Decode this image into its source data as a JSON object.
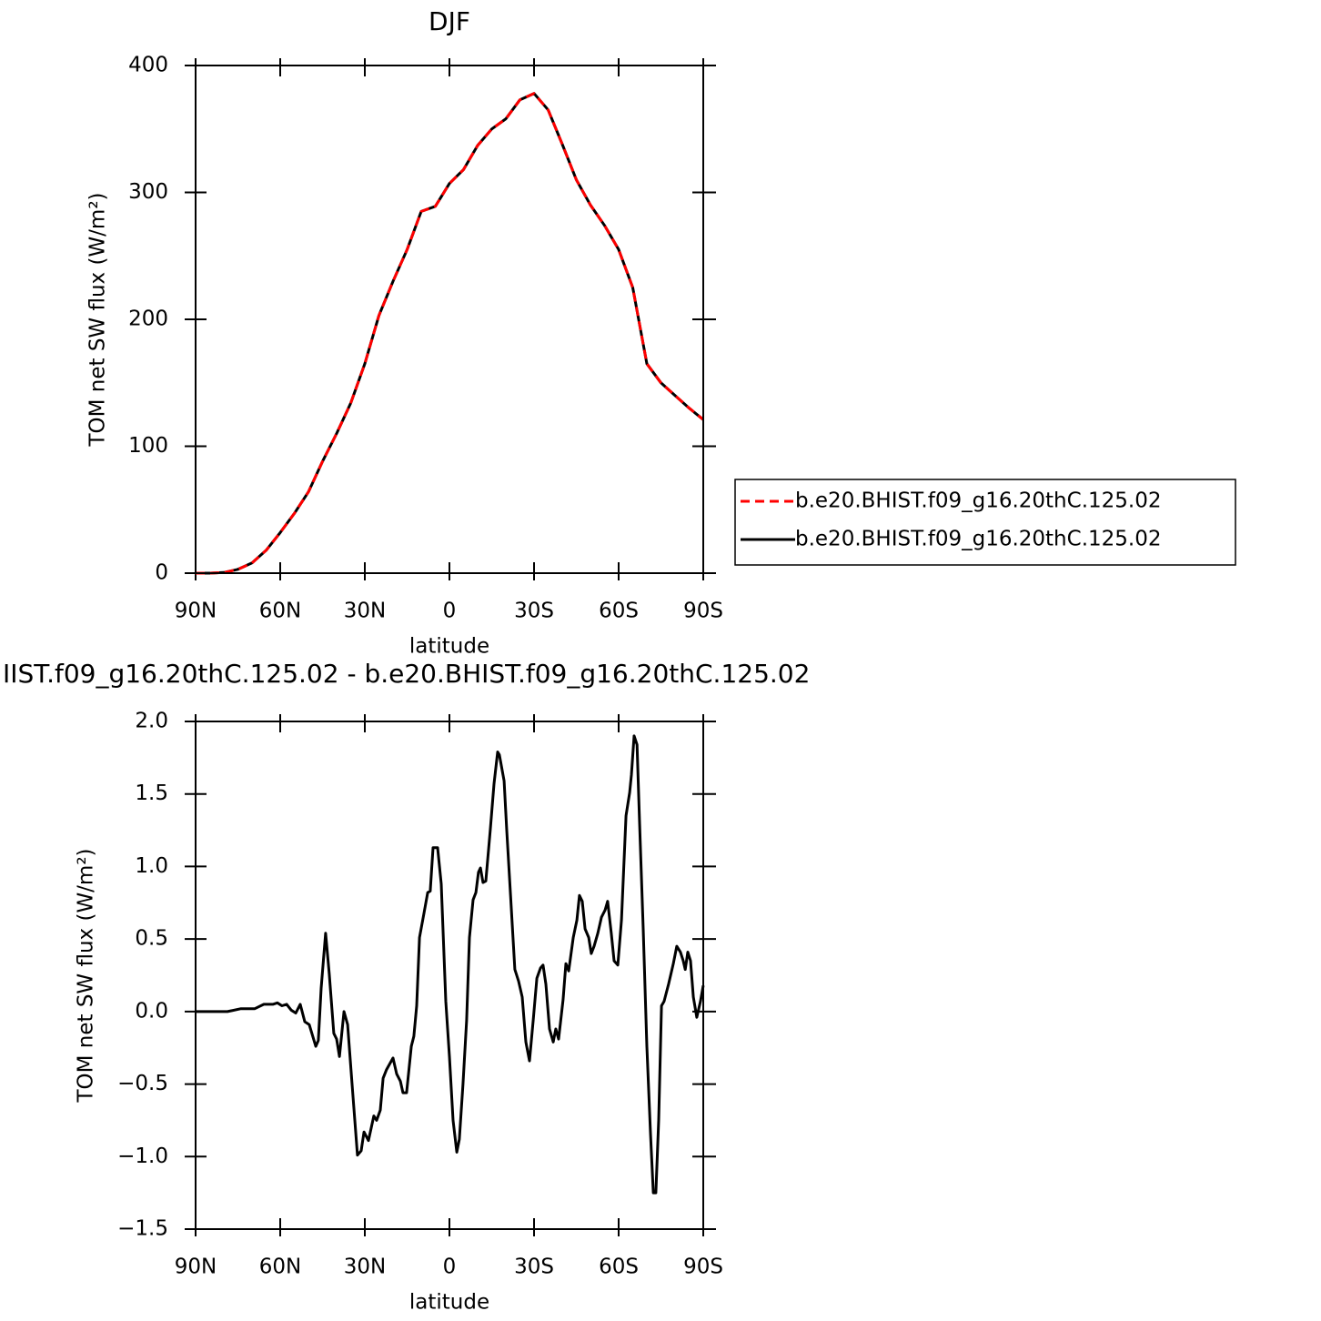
{
  "chart_data": [
    {
      "type": "line",
      "title": "DJF",
      "xlabel": "latitude",
      "ylabel": "TOM net SW flux (W/m²)",
      "x": [
        90,
        85,
        80,
        75,
        70,
        65,
        60,
        55,
        50,
        45,
        40,
        35,
        30,
        25,
        20,
        15,
        10,
        5,
        0,
        -5,
        -10,
        -15,
        -20,
        -25,
        -30,
        -35,
        -40,
        -45,
        -50,
        -55,
        -60,
        -65,
        -70,
        -75,
        -80,
        -85,
        -90
      ],
      "series": [
        {
          "name": "b.e20.BHIST.f09_g16.20thC.125.02",
          "color": "#ff0000",
          "linestyle": "dashed",
          "values": [
            0,
            0,
            0.5,
            3,
            8,
            18,
            32,
            47,
            64,
            88,
            110,
            134,
            165,
            203,
            230,
            255,
            285,
            289,
            307,
            318,
            337,
            350,
            358,
            373,
            378,
            365,
            338,
            310,
            290,
            274,
            255,
            225,
            165,
            150,
            140,
            130,
            121
          ]
        },
        {
          "name": "b.e20.BHIST.f09_g16.20thC.125.02",
          "color": "#000000",
          "linestyle": "solid",
          "values": [
            0,
            0,
            0.5,
            3,
            8,
            18,
            32,
            47,
            64,
            88,
            110,
            134,
            165,
            203,
            230,
            255,
            285,
            289,
            307,
            318,
            337,
            350,
            358,
            373,
            378,
            365,
            338,
            310,
            290,
            274,
            255,
            225,
            165,
            150,
            140,
            130,
            121
          ]
        }
      ],
      "xlim": [
        90,
        -90
      ],
      "xticks": [
        {
          "value": 90,
          "label": "90N"
        },
        {
          "value": 60,
          "label": "60N"
        },
        {
          "value": 30,
          "label": "30N"
        },
        0,
        {
          "value": -30,
          "label": "30S"
        },
        {
          "value": -60,
          "label": "60S"
        },
        {
          "value": -90,
          "label": "90S"
        }
      ],
      "ylim": [
        0,
        400
      ],
      "yticks": [
        0,
        100,
        200,
        300,
        400
      ],
      "legend": "outside-right"
    },
    {
      "type": "line",
      "title": "IIST.f09_g16.20thC.125.02 - b.e20.BHIST.f09_g16.20thC.125.02",
      "xlabel": "latitude",
      "ylabel": "TOM net SW flux (W/m²)",
      "x": [
        90,
        78.7,
        73.9,
        69.0,
        65.8,
        62.6,
        61.0,
        59.4,
        57.7,
        56.1,
        54.5,
        52.9,
        51.3,
        49.7,
        47.4,
        46.5,
        45.5,
        43.9,
        42.6,
        41.0,
        40.0,
        39.0,
        37.4,
        36.1,
        34.5,
        32.6,
        31.3,
        30.3,
        28.7,
        26.8,
        25.8,
        24.5,
        23.5,
        22.3,
        20.0,
        18.7,
        17.4,
        16.5,
        15.2,
        13.5,
        12.6,
        11.6,
        10.6,
        9.0,
        7.7,
        6.8,
        5.8,
        4.2,
        2.9,
        1.3,
        0,
        -1.3,
        -2.6,
        -3.5,
        -4.8,
        -6.1,
        -7.1,
        -8.4,
        -9.4,
        -10.3,
        -11.0,
        -11.9,
        -12.9,
        -14.5,
        -15.8,
        -17.1,
        -17.7,
        -19.4,
        -20.3,
        -21.6,
        -23.2,
        -24.5,
        -25.8,
        -27.1,
        -28.4,
        -29.7,
        -31.0,
        -32.3,
        -33.2,
        -34.2,
        -35.5,
        -36.8,
        -37.7,
        -38.7,
        -40.3,
        -41.3,
        -42.3,
        -43.9,
        -45.2,
        -46.1,
        -47.1,
        -48.1,
        -49.4,
        -50.3,
        -51.3,
        -52.6,
        -53.9,
        -55.2,
        -56.1,
        -57.4,
        -58.4,
        -59.7,
        -61.0,
        -62.6,
        -63.9,
        -64.5,
        -65.5,
        -66.5,
        -67.4,
        -68.7,
        -70.0,
        -71.3,
        -72.3,
        -73.2,
        -74.2,
        -75.2,
        -76.1,
        -77.7,
        -79.4,
        -80.6,
        -81.9,
        -82.9,
        -83.6,
        -84.5,
        -85.5,
        -86.5,
        -87.7,
        -89.0,
        -90
      ],
      "values": [
        0,
        0,
        0.02,
        0.02,
        0.05,
        0.05,
        0.06,
        0.04,
        0.05,
        0.01,
        -0.01,
        0.05,
        -0.07,
        -0.09,
        -0.24,
        -0.2,
        0.16,
        0.54,
        0.26,
        -0.15,
        -0.19,
        -0.31,
        0,
        -0.09,
        -0.51,
        -0.99,
        -0.96,
        -0.83,
        -0.89,
        -0.72,
        -0.75,
        -0.68,
        -0.46,
        -0.4,
        -0.32,
        -0.43,
        -0.48,
        -0.56,
        -0.56,
        -0.24,
        -0.17,
        0.04,
        0.51,
        0.68,
        0.82,
        0.83,
        1.13,
        1.13,
        0.88,
        0.07,
        -0.31,
        -0.75,
        -0.97,
        -0.88,
        -0.5,
        -0.06,
        0.51,
        0.77,
        0.82,
        0.96,
        0.99,
        0.89,
        0.9,
        1.26,
        1.57,
        1.79,
        1.77,
        1.59,
        1.26,
        0.82,
        0.29,
        0.21,
        0.1,
        -0.21,
        -0.34,
        -0.06,
        0.23,
        0.3,
        0.32,
        0.19,
        -0.12,
        -0.21,
        -0.12,
        -0.19,
        0.08,
        0.33,
        0.28,
        0.51,
        0.63,
        0.8,
        0.76,
        0.57,
        0.51,
        0.4,
        0.45,
        0.54,
        0.65,
        0.7,
        0.76,
        0.54,
        0.35,
        0.32,
        0.63,
        1.35,
        1.51,
        1.63,
        1.9,
        1.84,
        1.32,
        0.57,
        -0.24,
        -0.84,
        -1.25,
        -1.25,
        -0.75,
        0.04,
        0.07,
        0.19,
        0.33,
        0.45,
        0.41,
        0.35,
        0.29,
        0.41,
        0.35,
        0.1,
        -0.04,
        0.07,
        0.18
      ],
      "color": "#000000",
      "xlim": [
        90,
        -90
      ],
      "xticks": [
        {
          "value": 90,
          "label": "90N"
        },
        {
          "value": 60,
          "label": "60N"
        },
        {
          "value": 30,
          "label": "30N"
        },
        0,
        {
          "value": -30,
          "label": "30S"
        },
        {
          "value": -60,
          "label": "60S"
        },
        {
          "value": -90,
          "label": "90S"
        }
      ],
      "ylim": [
        -1.5,
        2.0
      ],
      "yticks": [
        {
          "value": -1.5,
          "label": "−1.5"
        },
        {
          "value": -1.0,
          "label": "−1.0"
        },
        {
          "value": -0.5,
          "label": "−0.5"
        },
        {
          "value": 0,
          "label": "0.0"
        },
        0.5,
        {
          "value": 1.0,
          "label": "1.0"
        },
        1.5,
        {
          "value": 2.0,
          "label": "2.0"
        }
      ]
    }
  ]
}
